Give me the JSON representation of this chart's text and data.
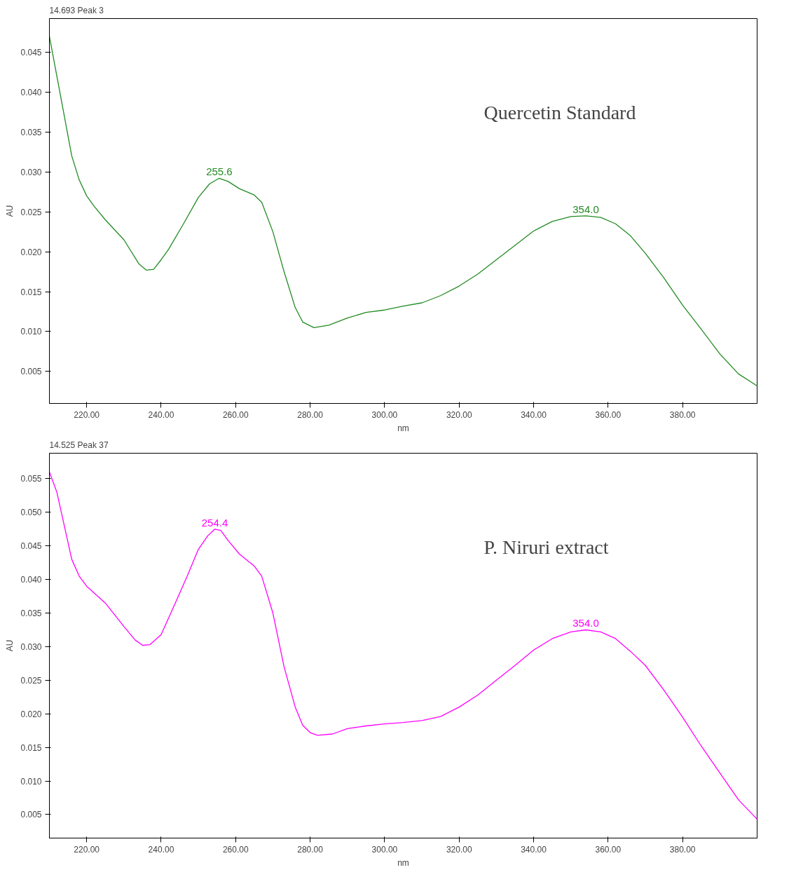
{
  "chart_data": [
    {
      "type": "line",
      "title": "Quercetin Standard",
      "subtitle": "14.693 Peak 3",
      "xlabel": "nm",
      "ylabel": "AU",
      "xlim": [
        210,
        400
      ],
      "ylim": [
        0.001,
        0.0492
      ],
      "xticks": [
        {
          "value": 220,
          "label": "220.00"
        },
        {
          "value": 240,
          "label": "240.00"
        },
        {
          "value": 260,
          "label": "260.00"
        },
        {
          "value": 280,
          "label": "280.00"
        },
        {
          "value": 300,
          "label": "300.00"
        },
        {
          "value": 320,
          "label": "320.00"
        },
        {
          "value": 340,
          "label": "340.00"
        },
        {
          "value": 360,
          "label": "360.00"
        },
        {
          "value": 380,
          "label": "380.00"
        }
      ],
      "yticks": [
        {
          "value": 0.005,
          "label": "0.005"
        },
        {
          "value": 0.01,
          "label": "0.010"
        },
        {
          "value": 0.015,
          "label": "0.015"
        },
        {
          "value": 0.02,
          "label": "0.020"
        },
        {
          "value": 0.025,
          "label": "0.025"
        },
        {
          "value": 0.03,
          "label": "0.030"
        },
        {
          "value": 0.035,
          "label": "0.035"
        },
        {
          "value": 0.04,
          "label": "0.040"
        },
        {
          "value": 0.045,
          "label": "0.045"
        }
      ],
      "grid": false,
      "marker": "none",
      "line_style": "solid",
      "series": [
        {
          "color": "#228b22",
          "x": [
            210,
            212,
            214,
            216,
            218,
            220,
            222,
            225,
            230,
            234,
            236,
            238,
            240,
            242,
            246,
            250,
            253,
            255.6,
            258,
            261,
            265,
            267,
            270,
            273,
            276,
            278,
            281,
            285,
            290,
            295,
            300,
            305,
            310,
            315,
            320,
            325,
            330,
            335,
            340,
            345,
            350,
            354,
            358,
            362,
            366,
            370,
            375,
            380,
            385,
            390,
            395,
            400
          ],
          "values": [
            0.047,
            0.042,
            0.037,
            0.032,
            0.029,
            0.027,
            0.0257,
            0.024,
            0.0215,
            0.0185,
            0.0177,
            0.0178,
            0.019,
            0.0203,
            0.0235,
            0.0268,
            0.0285,
            0.0292,
            0.0288,
            0.0279,
            0.0271,
            0.0262,
            0.0225,
            0.0175,
            0.013,
            0.0112,
            0.0105,
            0.0108,
            0.0117,
            0.0124,
            0.0127,
            0.0132,
            0.0136,
            0.0145,
            0.0157,
            0.0172,
            0.019,
            0.0208,
            0.0226,
            0.0238,
            0.0244,
            0.0245,
            0.0243,
            0.0235,
            0.022,
            0.0198,
            0.0167,
            0.0133,
            0.0103,
            0.0072,
            0.0047,
            0.0032
          ]
        }
      ],
      "annotations": [
        {
          "text": "255.6",
          "x": 255.6,
          "y": 0.0292
        },
        {
          "text": "354.0",
          "x": 354.0,
          "y": 0.0245
        }
      ]
    },
    {
      "type": "line",
      "title": "P. Niruri extract",
      "subtitle": "14.525 Peak 37",
      "xlabel": "nm",
      "ylabel": "AU",
      "xlim": [
        210,
        400
      ],
      "ylim": [
        0.0015,
        0.0588
      ],
      "xticks": [
        {
          "value": 220,
          "label": "220.00"
        },
        {
          "value": 240,
          "label": "240.00"
        },
        {
          "value": 260,
          "label": "260.00"
        },
        {
          "value": 280,
          "label": "280.00"
        },
        {
          "value": 300,
          "label": "300.00"
        },
        {
          "value": 320,
          "label": "320.00"
        },
        {
          "value": 340,
          "label": "340.00"
        },
        {
          "value": 360,
          "label": "360.00"
        },
        {
          "value": 380,
          "label": "380.00"
        }
      ],
      "yticks": [
        {
          "value": 0.005,
          "label": "0.005"
        },
        {
          "value": 0.01,
          "label": "0.010"
        },
        {
          "value": 0.015,
          "label": "0.015"
        },
        {
          "value": 0.02,
          "label": "0.020"
        },
        {
          "value": 0.025,
          "label": "0.025"
        },
        {
          "value": 0.03,
          "label": "0.030"
        },
        {
          "value": 0.035,
          "label": "0.035"
        },
        {
          "value": 0.04,
          "label": "0.040"
        },
        {
          "value": 0.045,
          "label": "0.045"
        },
        {
          "value": 0.05,
          "label": "0.050"
        },
        {
          "value": 0.055,
          "label": "0.055"
        }
      ],
      "grid": false,
      "marker": "none",
      "line_style": "solid",
      "series": [
        {
          "color": "#ff00ff",
          "x": [
            210,
            212,
            214,
            216,
            218,
            220,
            225,
            230,
            233,
            235,
            237,
            240,
            243,
            247,
            250,
            252.5,
            254.4,
            256,
            258,
            261,
            265,
            267,
            270,
            273,
            276,
            278,
            280,
            282,
            286,
            290,
            295,
            300,
            305,
            310,
            315,
            320,
            325,
            330,
            335,
            340,
            345,
            350,
            354,
            358,
            362,
            366,
            370,
            375,
            380,
            385,
            390,
            395,
            400
          ],
          "values": [
            0.056,
            0.053,
            0.048,
            0.043,
            0.0405,
            0.039,
            0.0365,
            0.033,
            0.031,
            0.0302,
            0.0303,
            0.0318,
            0.0355,
            0.0405,
            0.0445,
            0.0465,
            0.0475,
            0.0473,
            0.0458,
            0.0438,
            0.042,
            0.0405,
            0.035,
            0.027,
            0.021,
            0.0183,
            0.0172,
            0.0168,
            0.017,
            0.0178,
            0.0182,
            0.0185,
            0.0187,
            0.019,
            0.0196,
            0.021,
            0.0228,
            0.025,
            0.0272,
            0.0295,
            0.0312,
            0.0322,
            0.0325,
            0.0322,
            0.0312,
            0.0293,
            0.0272,
            0.0235,
            0.0195,
            0.0152,
            0.0112,
            0.0072,
            0.0043
          ]
        }
      ],
      "annotations": [
        {
          "text": "254.4",
          "x": 254.4,
          "y": 0.0475
        },
        {
          "text": "354.0",
          "x": 354.0,
          "y": 0.0325
        }
      ]
    }
  ]
}
